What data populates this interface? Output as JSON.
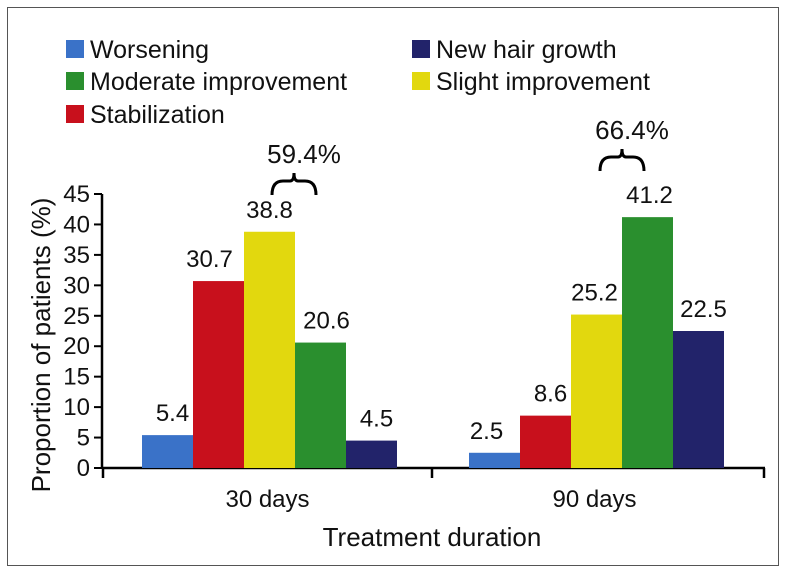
{
  "chart_data": {
    "type": "bar",
    "title": "",
    "xlabel": "Treatment duration",
    "ylabel": "Proportion of patients (%)",
    "ylim": [
      0,
      45
    ],
    "yticks": [
      "0",
      "5",
      "10",
      "15",
      "20",
      "25",
      "30",
      "35",
      "40",
      "45"
    ],
    "categories": [
      "30 days",
      "90 days"
    ],
    "legend_position": "top",
    "series": [
      {
        "name": "Worsening",
        "color": "#3a72c8",
        "values": [
          5.4,
          2.5
        ],
        "labels": [
          "5.4",
          "2.5"
        ]
      },
      {
        "name": "Stabilization",
        "color": "#c8101c",
        "values": [
          30.7,
          8.6
        ],
        "labels": [
          "30.7",
          "8.6"
        ]
      },
      {
        "name": "Slight improvement",
        "color": "#e2d80e",
        "values": [
          38.8,
          25.2
        ],
        "labels": [
          "38.8",
          "25.2"
        ]
      },
      {
        "name": "Moderate improvement",
        "color": "#2a8f2e",
        "values": [
          20.6,
          41.2
        ],
        "labels": [
          "20.6",
          "41.2"
        ]
      },
      {
        "name": "New hair growth",
        "color": "#22236a",
        "values": [
          4.5,
          22.5
        ],
        "labels": [
          "4.5",
          "22.5"
        ]
      }
    ],
    "annotations": [
      {
        "text": "59.4%",
        "category": "30 days"
      },
      {
        "text": "66.4%",
        "category": "90 days"
      }
    ]
  }
}
